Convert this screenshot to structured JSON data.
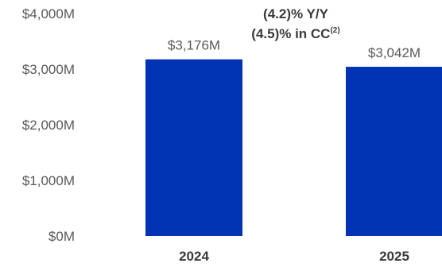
{
  "chart_data": {
    "type": "bar",
    "categories": [
      "2024",
      "2025"
    ],
    "values": [
      3176,
      3042
    ],
    "value_labels": [
      "$3,176M",
      "$3,042M"
    ],
    "ylim": [
      0,
      4000
    ],
    "yticks": [
      0,
      1000,
      2000,
      3000,
      4000
    ],
    "ytick_labels": [
      "$0M",
      "$1,000M",
      "$2,000M",
      "$3,000M",
      "$4,000M"
    ],
    "title": "",
    "xlabel": "",
    "ylabel": "",
    "grid": false,
    "bar_color": "#0033b3",
    "annotation": {
      "line1": "(4.2)% Y/Y",
      "line2_text": "(4.5)% in CC",
      "line2_sup": "(2)"
    }
  }
}
